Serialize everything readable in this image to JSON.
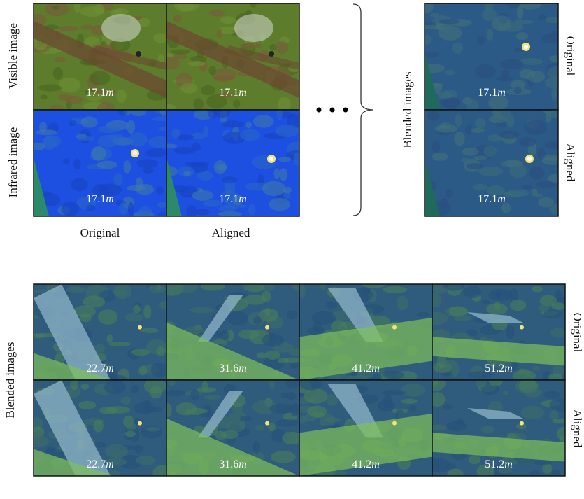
{
  "top": {
    "row_labels": [
      "Visible image",
      "Infrared image"
    ],
    "column_labels": [
      "Original",
      "Aligned"
    ],
    "distances": [
      [
        {
          "value": "17.1",
          "unit": "m"
        },
        {
          "value": "17.1",
          "unit": "m"
        }
      ],
      [
        {
          "value": "17.1",
          "unit": "m"
        },
        {
          "value": "17.1",
          "unit": "m"
        }
      ]
    ],
    "blended": {
      "label": "Blended images",
      "row_labels": [
        "Original",
        "Aligned"
      ],
      "distances": [
        {
          "value": "17.1",
          "unit": "m"
        },
        {
          "value": "17.1",
          "unit": "m"
        }
      ]
    }
  },
  "bottom": {
    "label": "Blended images",
    "row_labels": [
      "Original",
      "Aligned"
    ],
    "distances": [
      [
        {
          "value": "22.7",
          "unit": "m"
        },
        {
          "value": "31.6",
          "unit": "m"
        },
        {
          "value": "41.2",
          "unit": "m"
        },
        {
          "value": "51.2",
          "unit": "m"
        }
      ],
      [
        {
          "value": "22.7",
          "unit": "m"
        },
        {
          "value": "31.6",
          "unit": "m"
        },
        {
          "value": "41.2",
          "unit": "m"
        },
        {
          "value": "51.2",
          "unit": "m"
        }
      ]
    ]
  }
}
